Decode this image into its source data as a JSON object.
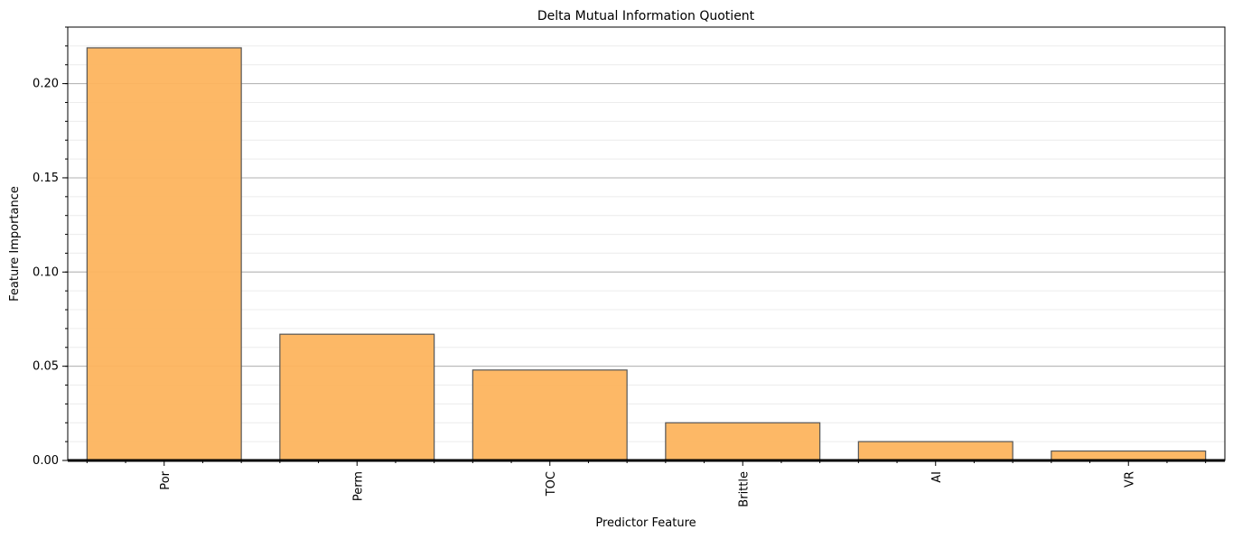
{
  "chart_data": {
    "type": "bar",
    "title": "Delta Mutual Information Quotient",
    "xlabel": "Predictor Feature",
    "ylabel": "Feature Importance",
    "categories": [
      "Por",
      "Perm",
      "TOC",
      "Brittle",
      "AI",
      "VR"
    ],
    "values": [
      0.219,
      0.067,
      0.048,
      0.02,
      0.01,
      0.005
    ],
    "ylim": [
      0,
      0.23
    ],
    "yticks": [
      0.0,
      0.05,
      0.1,
      0.15,
      0.2
    ],
    "ytick_labels": [
      "0.00",
      "0.05",
      "0.10",
      "0.15",
      "0.20"
    ],
    "grid": true,
    "bar_color": "#fdb45e",
    "bar_edge_color": "#555555"
  }
}
